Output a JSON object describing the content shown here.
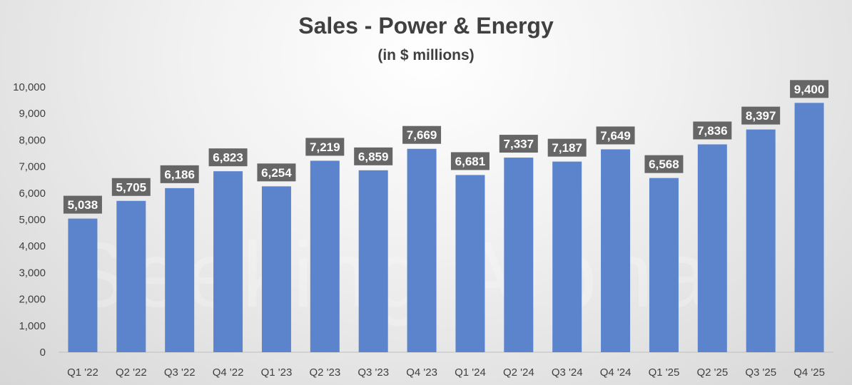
{
  "chart_data": {
    "type": "bar",
    "title": "Sales - Power & Energy",
    "subtitle": "(in $ millions)",
    "xlabel": "",
    "ylabel": "",
    "ylim": [
      0,
      10000
    ],
    "yticks": [
      "0",
      "1,000",
      "2,000",
      "3,000",
      "4,000",
      "5,000",
      "6,000",
      "7,000",
      "8,000",
      "9,000",
      "10,000"
    ],
    "categories": [
      "Q1 '22",
      "Q2 '22",
      "Q3 '22",
      "Q4 '22",
      "Q1 '23",
      "Q2 '23",
      "Q3 '23",
      "Q4 '23",
      "Q1 '24",
      "Q2 '24",
      "Q3 '24",
      "Q4 '24",
      "Q1 '25",
      "Q2 '25",
      "Q3 '25",
      "Q4 '25"
    ],
    "values": [
      5038,
      5705,
      6186,
      6823,
      6254,
      7219,
      6859,
      7669,
      6681,
      7337,
      7187,
      7649,
      6568,
      7836,
      8397,
      9400
    ],
    "data_labels": [
      "5,038",
      "5,705",
      "6,186",
      "6,823",
      "6,254",
      "7,219",
      "6,859",
      "7,669",
      "6,681",
      "7,337",
      "7,187",
      "7,649",
      "6,568",
      "7,836",
      "8,397",
      "9,400"
    ],
    "grid": false,
    "legend": "none"
  },
  "colors": {
    "bar": "#5b84cc",
    "label_box": "#666666",
    "text": "#404040",
    "axis": "#bfbfbf"
  },
  "watermark": "Seeking Alpha"
}
